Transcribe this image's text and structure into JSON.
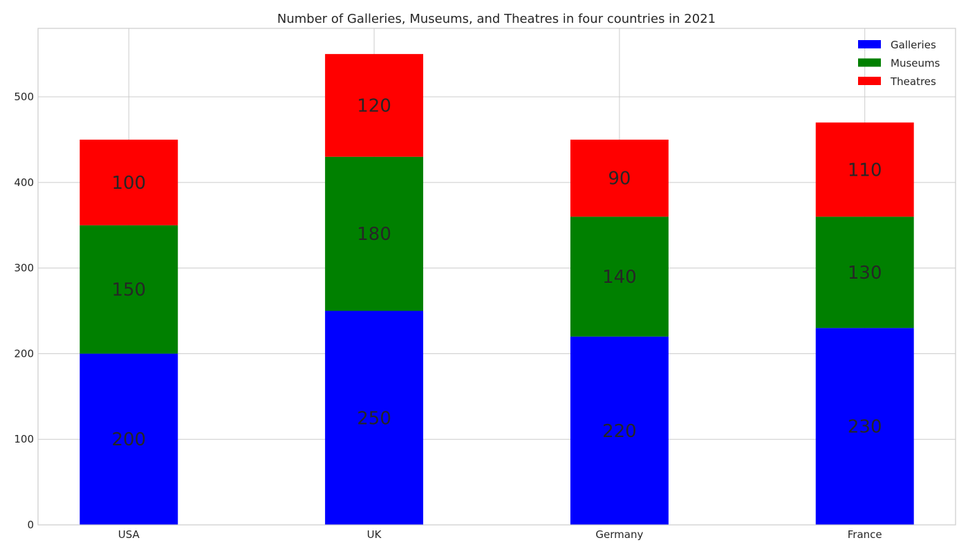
{
  "chart_data": {
    "type": "bar",
    "stacked": true,
    "title": "Number of Galleries, Museums, and Theatres in four countries in 2021",
    "xlabel": "",
    "ylabel": "",
    "categories": [
      "USA",
      "UK",
      "Germany",
      "France"
    ],
    "series": [
      {
        "name": "Galleries",
        "values": [
          200,
          250,
          220,
          230
        ],
        "color": "#0000ff"
      },
      {
        "name": "Museums",
        "values": [
          150,
          180,
          140,
          130
        ],
        "color": "#008000"
      },
      {
        "name": "Theatres",
        "values": [
          100,
          120,
          90,
          110
        ],
        "color": "#ff0000"
      }
    ],
    "ylim": [
      0,
      580
    ],
    "yticks": [
      0,
      100,
      200,
      300,
      400,
      500
    ],
    "grid": true,
    "legend_position": "top-right",
    "data_labels": true
  }
}
